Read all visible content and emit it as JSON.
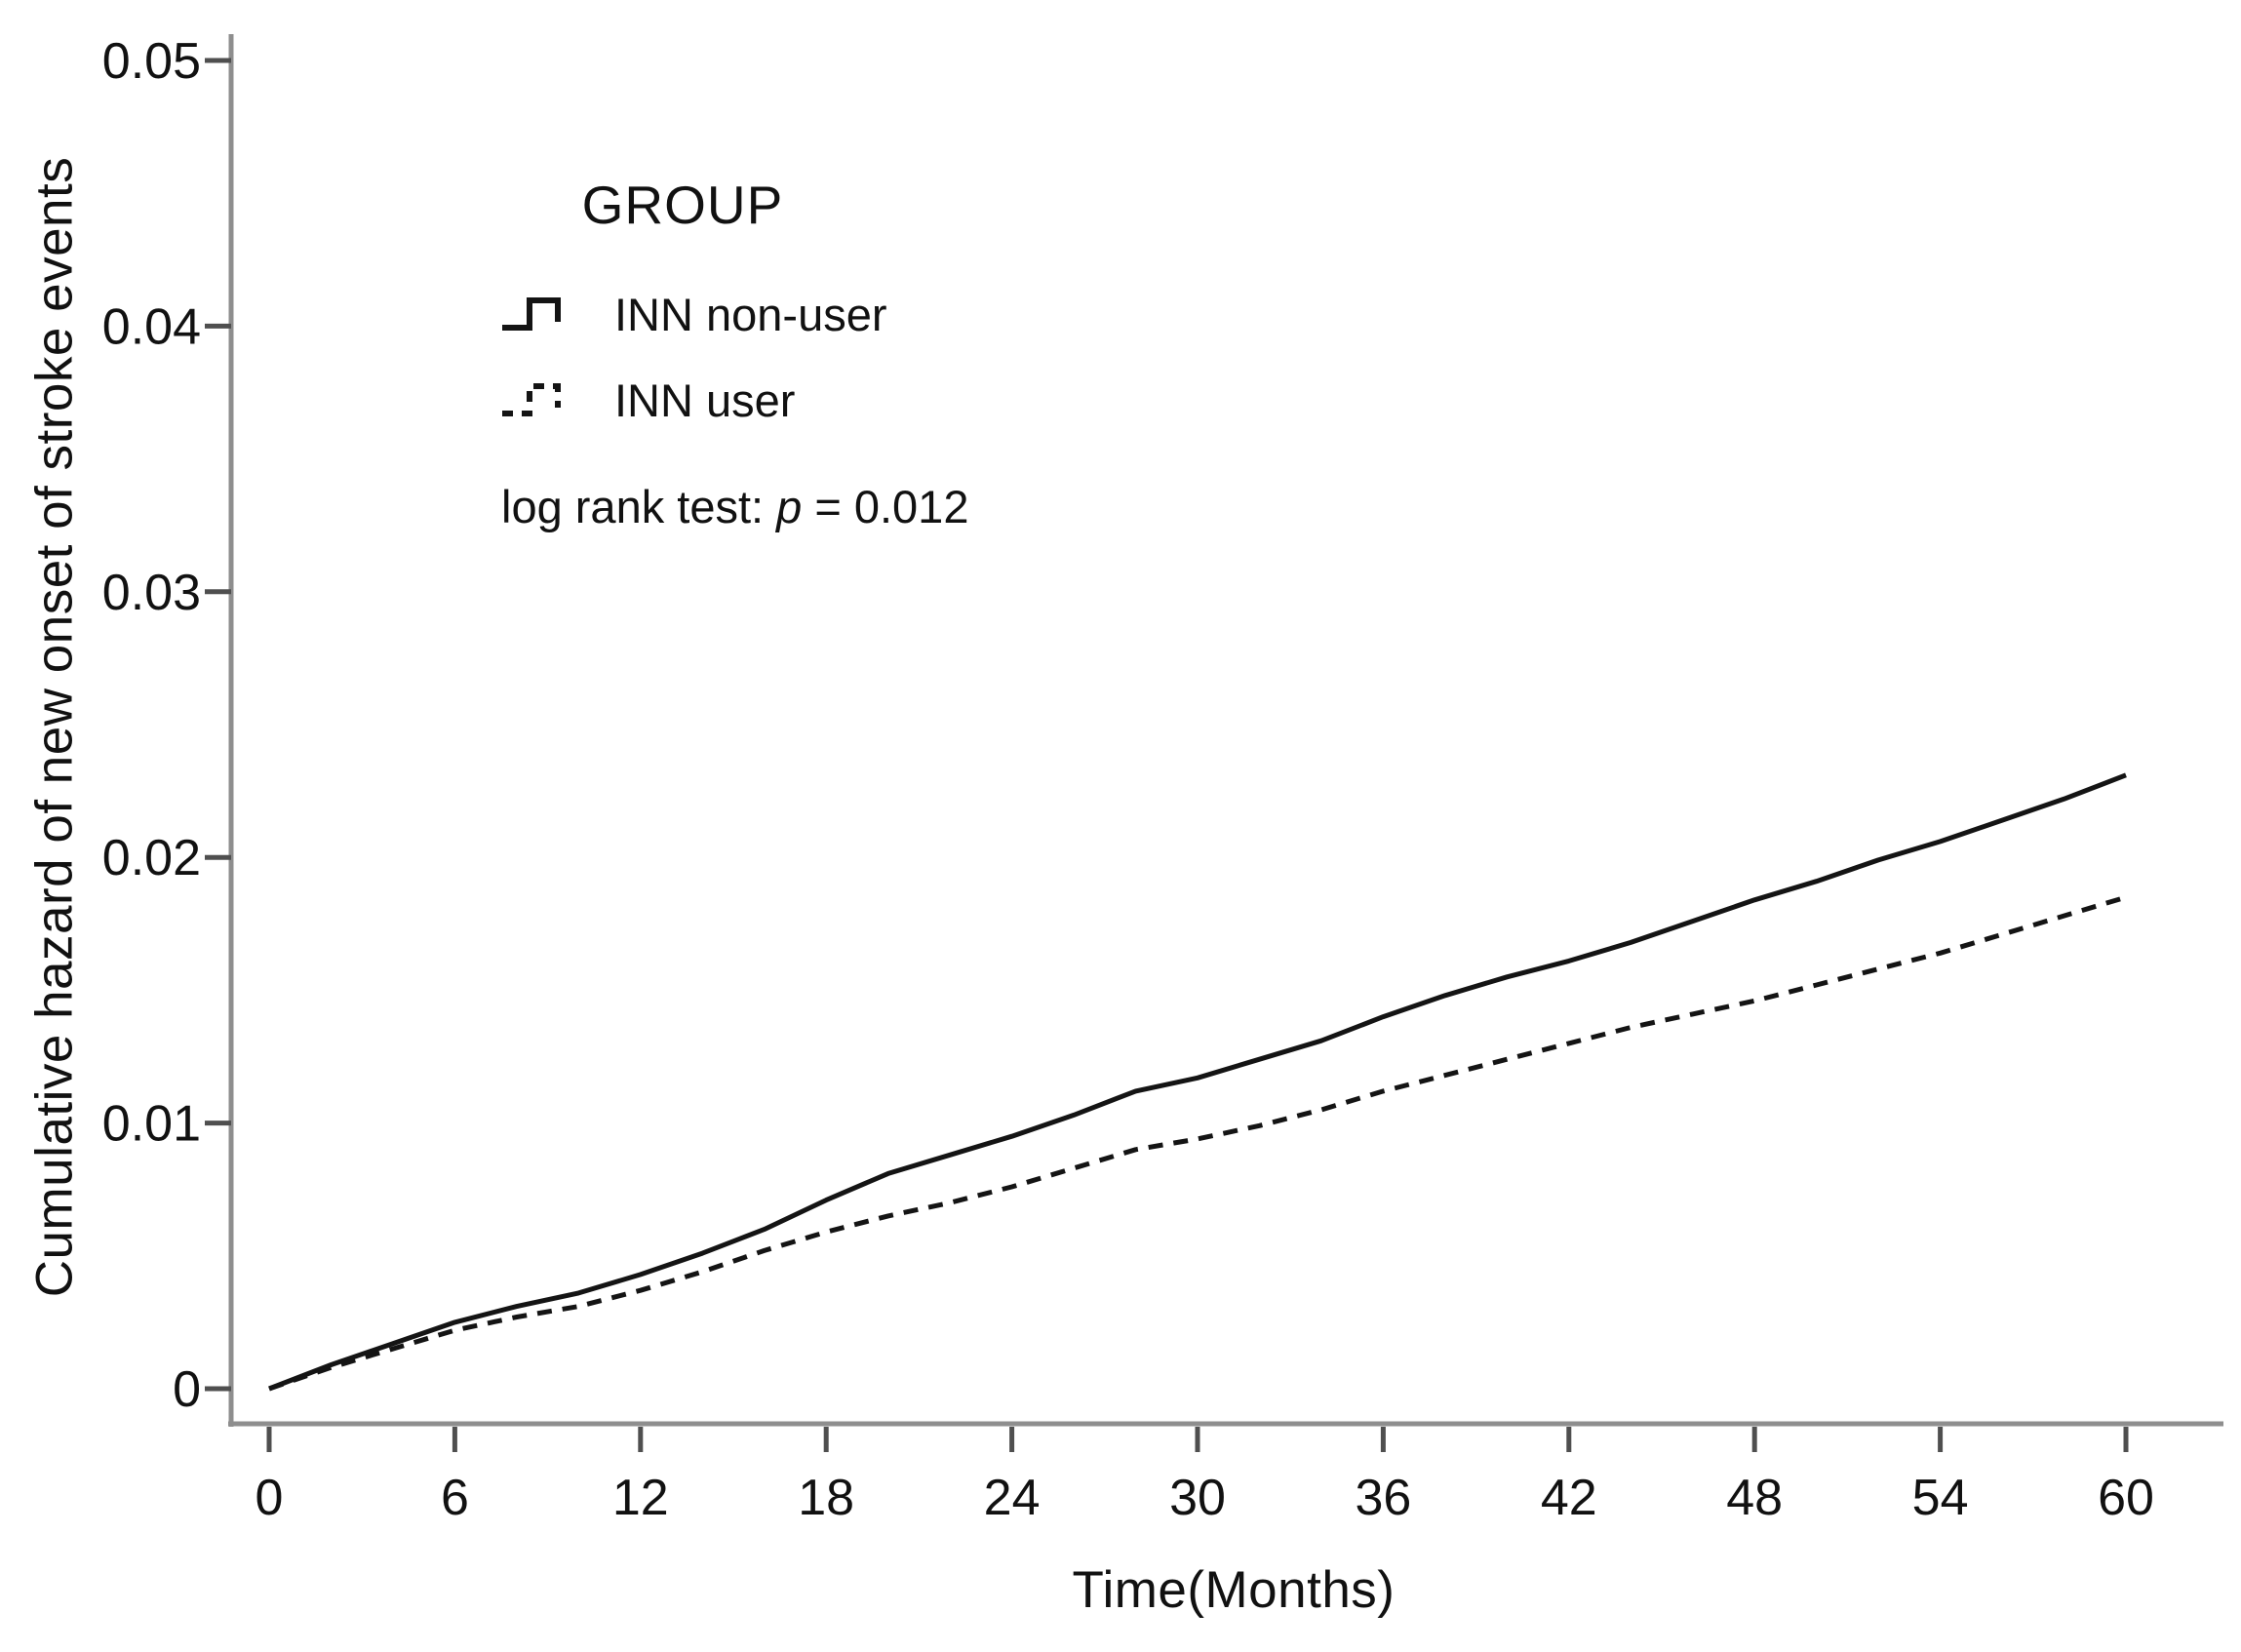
{
  "figure": {
    "background": "#ffffff",
    "text_color": "#111111",
    "axis_color": "#8e8e8e",
    "tick_color": "#4f4f4f",
    "curve_color": "#141414"
  },
  "legend": {
    "title": "GROUP",
    "items": [
      {
        "label": "INN non-user",
        "line_style": "solid"
      },
      {
        "label": "INN user",
        "line_style": "dashed"
      }
    ],
    "annotation": {
      "prefix": "log rank test: ",
      "stat_symbol": "p",
      "rest": " = 0.012"
    }
  },
  "chart_data": {
    "type": "line",
    "title": "",
    "xlabel": "Time(Months)",
    "ylabel": "Cumulative hazard of new onset of stroke events",
    "xlim": [
      0,
      60
    ],
    "ylim": [
      0,
      0.05
    ],
    "grid": false,
    "legend_position": "upper-left-inside",
    "x_ticks": [
      0,
      6,
      12,
      18,
      24,
      30,
      36,
      42,
      48,
      54,
      60
    ],
    "x_tick_labels": [
      "0",
      "6",
      "12",
      "18",
      "24",
      "30",
      "36",
      "42",
      "48",
      "54",
      "60"
    ],
    "y_ticks": [
      0,
      0.01,
      0.02,
      0.03,
      0.04,
      0.05
    ],
    "y_tick_labels": [
      "0",
      "0.01",
      "0.02",
      "0.03",
      "0.04",
      "0.05"
    ],
    "x": [
      0,
      2,
      4,
      6,
      8,
      10,
      12,
      14,
      16,
      18,
      20,
      22,
      24,
      26,
      28,
      30,
      32,
      34,
      36,
      38,
      40,
      42,
      44,
      46,
      48,
      50,
      52,
      54,
      56,
      58,
      60
    ],
    "series": [
      {
        "name": "INN non-user",
        "style": "solid",
        "color": "#141414",
        "values": [
          0.0,
          0.0009,
          0.0017,
          0.0025,
          0.0031,
          0.0036,
          0.0043,
          0.0051,
          0.006,
          0.0071,
          0.0081,
          0.0088,
          0.0095,
          0.0103,
          0.0112,
          0.0117,
          0.0124,
          0.0131,
          0.014,
          0.0148,
          0.0155,
          0.0161,
          0.0168,
          0.0176,
          0.0184,
          0.0191,
          0.0199,
          0.0206,
          0.0214,
          0.0222,
          0.0231
        ]
      },
      {
        "name": "INN user",
        "style": "dashed",
        "color": "#141414",
        "values": [
          0.0,
          0.0008,
          0.0015,
          0.0022,
          0.0027,
          0.0031,
          0.0037,
          0.0044,
          0.0052,
          0.0059,
          0.0065,
          0.007,
          0.0076,
          0.0083,
          0.009,
          0.0094,
          0.0099,
          0.0105,
          0.0112,
          0.0118,
          0.0124,
          0.013,
          0.0136,
          0.0141,
          0.0146,
          0.0152,
          0.0158,
          0.0164,
          0.0171,
          0.0178,
          0.0185
        ]
      }
    ]
  }
}
